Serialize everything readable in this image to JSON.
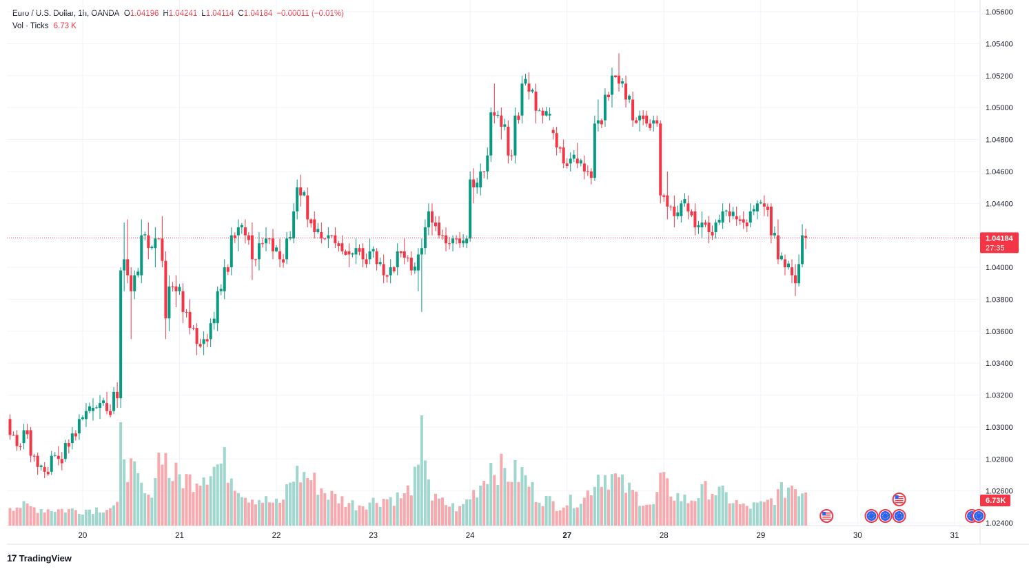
{
  "legend": {
    "symbol": "Euro / U.S. Dollar, 1h, OANDA",
    "o_label": "O",
    "o_value": "1.04196",
    "h_label": "H",
    "h_value": "1.04241",
    "l_label": "L",
    "l_value": "1.04114",
    "c_label": "C",
    "c_value": "1.04184",
    "change": "−0.00011 (−0.01%)",
    "vol_label": "Vol · Ticks",
    "vol_value": "6.73 K"
  },
  "price_tag": {
    "price": "1.04184",
    "countdown": "27:35"
  },
  "volume_tag": "6.73K",
  "branding": {
    "logo": "17",
    "name": "TradingView"
  },
  "colors": {
    "up": "#089981",
    "down": "#f23645",
    "vol_up": "#9fd6cd",
    "vol_down": "#f7a9ad",
    "grid": "#f0f3fa"
  },
  "chart_data": {
    "type": "candlestick",
    "y_ticks": [
      "1.05600",
      "1.05400",
      "1.05200",
      "1.05000",
      "1.04800",
      "1.04600",
      "1.04400",
      "1.04200",
      "1.04000",
      "1.03800",
      "1.03600",
      "1.03400",
      "1.03200",
      "1.03000",
      "1.02800",
      "1.02600",
      "1.02400"
    ],
    "ylim": [
      1.024,
      1.0562
    ],
    "x_ticks": [
      {
        "label": "20",
        "bar": 21,
        "bold": false
      },
      {
        "label": "21",
        "bar": 49,
        "bold": false
      },
      {
        "label": "22",
        "bar": 77,
        "bold": false
      },
      {
        "label": "23",
        "bar": 105,
        "bold": false
      },
      {
        "label": "24",
        "bar": 133,
        "bold": false
      },
      {
        "label": "27",
        "bar": 161,
        "bold": true
      },
      {
        "label": "28",
        "bar": 189,
        "bold": false
      },
      {
        "label": "29",
        "bar": 217,
        "bold": false
      },
      {
        "label": "30",
        "bar": 245,
        "bold": false
      },
      {
        "label": "31",
        "bar": 273,
        "bold": false
      }
    ],
    "last_price": 1.04184,
    "anchors": [
      [
        0,
        1.0305,
        1.0308,
        1.0292,
        1.0295
      ],
      [
        2,
        1.0295,
        1.0298,
        1.0285,
        1.0288
      ],
      [
        4,
        1.029,
        1.0302,
        1.0286,
        1.0298
      ],
      [
        6,
        1.0298,
        1.03,
        1.0278,
        1.0282
      ],
      [
        8,
        1.0282,
        1.0284,
        1.027,
        1.0275
      ],
      [
        10,
        1.0275,
        1.0278,
        1.0268,
        1.0272
      ],
      [
        12,
        1.0272,
        1.0285,
        1.027,
        1.0282
      ],
      [
        14,
        1.0282,
        1.0288,
        1.0276,
        1.028
      ],
      [
        16,
        1.028,
        1.0292,
        1.0278,
        1.029
      ],
      [
        18,
        1.029,
        1.03,
        1.0286,
        1.0296
      ],
      [
        20,
        1.0296,
        1.0308,
        1.0292,
        1.0305
      ],
      [
        22,
        1.0305,
        1.0315,
        1.03,
        1.031
      ],
      [
        24,
        1.031,
        1.0318,
        1.0304,
        1.0312
      ],
      [
        26,
        1.0312,
        1.032,
        1.0305,
        1.0315
      ],
      [
        28,
        1.0315,
        1.0322,
        1.0308,
        1.031
      ],
      [
        30,
        1.031,
        1.0325,
        1.0308,
        1.0322
      ],
      [
        31,
        1.0322,
        1.0328,
        1.0312,
        1.0318
      ],
      [
        32,
        1.0318,
        1.04,
        1.0312,
        1.0398
      ],
      [
        33,
        1.0398,
        1.0428,
        1.0385,
        1.0405
      ],
      [
        34,
        1.0405,
        1.043,
        1.039,
        1.0395
      ],
      [
        35,
        1.0395,
        1.04,
        1.0355,
        1.0385
      ],
      [
        36,
        1.0385,
        1.0398,
        1.038,
        1.0395
      ],
      [
        38,
        1.0395,
        1.043,
        1.039,
        1.042
      ],
      [
        40,
        1.042,
        1.0428,
        1.0405,
        1.0412
      ],
      [
        42,
        1.0412,
        1.0425,
        1.04,
        1.0418
      ],
      [
        44,
        1.0418,
        1.0432,
        1.04,
        1.0404
      ],
      [
        45,
        1.0404,
        1.041,
        1.0355,
        1.0368
      ],
      [
        46,
        1.0368,
        1.0395,
        1.036,
        1.0388
      ],
      [
        48,
        1.0388,
        1.0395,
        1.0375,
        1.0385
      ],
      [
        50,
        1.0385,
        1.039,
        1.0365,
        1.0372
      ],
      [
        52,
        1.0372,
        1.038,
        1.0358,
        1.0362
      ],
      [
        54,
        1.0362,
        1.0365,
        1.0345,
        1.0352
      ],
      [
        56,
        1.0352,
        1.036,
        1.0345,
        1.0355
      ],
      [
        58,
        1.0355,
        1.0368,
        1.035,
        1.0365
      ],
      [
        60,
        1.0365,
        1.0388,
        1.036,
        1.0385
      ],
      [
        62,
        1.0385,
        1.0405,
        1.038,
        1.04
      ],
      [
        64,
        1.04,
        1.0425,
        1.0395,
        1.042
      ],
      [
        66,
        1.042,
        1.043,
        1.041,
        1.0425
      ],
      [
        68,
        1.0425,
        1.043,
        1.0415,
        1.042
      ],
      [
        70,
        1.042,
        1.0428,
        1.0392,
        1.0405
      ],
      [
        72,
        1.0405,
        1.0422,
        1.0398,
        1.0415
      ],
      [
        74,
        1.0415,
        1.0425,
        1.041,
        1.0418
      ],
      [
        76,
        1.0418,
        1.0424,
        1.0405,
        1.041
      ],
      [
        78,
        1.041,
        1.0418,
        1.04,
        1.0405
      ],
      [
        80,
        1.0405,
        1.0422,
        1.0402,
        1.0418
      ],
      [
        82,
        1.0418,
        1.044,
        1.0415,
        1.0435
      ],
      [
        83,
        1.0435,
        1.0455,
        1.043,
        1.045
      ],
      [
        84,
        1.045,
        1.0458,
        1.0438,
        1.0445
      ],
      [
        86,
        1.0445,
        1.045,
        1.0425,
        1.043
      ],
      [
        88,
        1.043,
        1.0435,
        1.0418,
        1.0422
      ],
      [
        90,
        1.0422,
        1.0428,
        1.0415,
        1.0418
      ],
      [
        92,
        1.0418,
        1.0425,
        1.0412,
        1.042
      ],
      [
        94,
        1.042,
        1.0425,
        1.0412,
        1.0415
      ],
      [
        96,
        1.0415,
        1.042,
        1.0408,
        1.041
      ],
      [
        98,
        1.041,
        1.0415,
        1.04,
        1.0408
      ],
      [
        100,
        1.0408,
        1.0418,
        1.0402,
        1.0412
      ],
      [
        102,
        1.0412,
        1.0415,
        1.04,
        1.0405
      ],
      [
        104,
        1.0405,
        1.0418,
        1.0402,
        1.041
      ],
      [
        106,
        1.041,
        1.0412,
        1.0398,
        1.0402
      ],
      [
        108,
        1.0402,
        1.0408,
        1.039,
        1.0395
      ],
      [
        110,
        1.0395,
        1.0405,
        1.039,
        1.04
      ],
      [
        112,
        1.04,
        1.0415,
        1.0395,
        1.041
      ],
      [
        114,
        1.041,
        1.0418,
        1.0402,
        1.0406
      ],
      [
        116,
        1.0406,
        1.041,
        1.0395,
        1.0398
      ],
      [
        118,
        1.0398,
        1.0412,
        1.0385,
        1.0408
      ],
      [
        119,
        1.0408,
        1.0418,
        1.0372,
        1.0412
      ],
      [
        120,
        1.0412,
        1.043,
        1.0408,
        1.0425
      ],
      [
        121,
        1.0425,
        1.044,
        1.042,
        1.0435
      ],
      [
        122,
        1.0435,
        1.044,
        1.042,
        1.0428
      ],
      [
        124,
        1.0428,
        1.0432,
        1.0418,
        1.042
      ],
      [
        126,
        1.042,
        1.0425,
        1.041,
        1.0415
      ],
      [
        128,
        1.0415,
        1.042,
        1.041,
        1.0418
      ],
      [
        130,
        1.0418,
        1.0422,
        1.0412,
        1.0415
      ],
      [
        132,
        1.0415,
        1.042,
        1.0412,
        1.0418
      ],
      [
        133,
        1.0418,
        1.046,
        1.0416,
        1.0455
      ],
      [
        134,
        1.0455,
        1.0462,
        1.044,
        1.045
      ],
      [
        136,
        1.045,
        1.0465,
        1.0445,
        1.046
      ],
      [
        138,
        1.046,
        1.0475,
        1.0455,
        1.047
      ],
      [
        139,
        1.047,
        1.05,
        1.0466,
        1.0497
      ],
      [
        140,
        1.0497,
        1.0515,
        1.049,
        1.0495
      ],
      [
        142,
        1.0495,
        1.05,
        1.048,
        1.0488
      ],
      [
        144,
        1.0488,
        1.0492,
        1.0465,
        1.047
      ],
      [
        146,
        1.047,
        1.05,
        1.0465,
        1.0495
      ],
      [
        148,
        1.0495,
        1.052,
        1.049,
        1.0515
      ],
      [
        150,
        1.0515,
        1.0522,
        1.0505,
        1.051
      ],
      [
        152,
        1.051,
        1.0515,
        1.049,
        1.0498
      ],
      [
        154,
        1.0498,
        1.05,
        1.049,
        1.0495
      ],
      [
        156,
        1.0495,
        1.05,
        1.0492,
        1.0496
      ],
      [
        157,
        1.0486,
        1.0488,
        1.048,
        1.0484
      ],
      [
        158,
        1.0484,
        1.0488,
        1.047,
        1.0475
      ],
      [
        160,
        1.0475,
        1.048,
        1.0462,
        1.0465
      ],
      [
        162,
        1.0465,
        1.0472,
        1.046,
        1.0468
      ],
      [
        164,
        1.0468,
        1.0478,
        1.0462,
        1.0465
      ],
      [
        166,
        1.0465,
        1.047,
        1.0455,
        1.046
      ],
      [
        168,
        1.046,
        1.0462,
        1.0452,
        1.0456
      ],
      [
        169,
        1.0456,
        1.0495,
        1.0454,
        1.049
      ],
      [
        170,
        1.049,
        1.0505,
        1.0485,
        1.0492
      ],
      [
        172,
        1.0492,
        1.0512,
        1.0488,
        1.0508
      ],
      [
        174,
        1.0508,
        1.0525,
        1.05,
        1.052
      ],
      [
        176,
        1.052,
        1.0534,
        1.051,
        1.0515
      ],
      [
        178,
        1.0515,
        1.052,
        1.05,
        1.0505
      ],
      [
        180,
        1.0505,
        1.051,
        1.0488,
        1.0492
      ],
      [
        182,
        1.0492,
        1.0498,
        1.0485,
        1.0495
      ],
      [
        184,
        1.0495,
        1.0498,
        1.0488,
        1.049
      ],
      [
        186,
        1.049,
        1.0495,
        1.0485,
        1.0492
      ],
      [
        187,
        1.0492,
        1.0495,
        1.0488,
        1.049
      ],
      [
        188,
        1.049,
        1.0492,
        1.044,
        1.0445
      ],
      [
        190,
        1.0445,
        1.046,
        1.043,
        1.0438
      ],
      [
        192,
        1.0438,
        1.0445,
        1.0425,
        1.0432
      ],
      [
        194,
        1.0432,
        1.0442,
        1.0428,
        1.044
      ],
      [
        196,
        1.044,
        1.0445,
        1.043,
        1.0435
      ],
      [
        198,
        1.0435,
        1.044,
        1.042,
        1.0425
      ],
      [
        200,
        1.0425,
        1.0435,
        1.0418,
        1.0428
      ],
      [
        202,
        1.0428,
        1.0432,
        1.0415,
        1.0422
      ],
      [
        204,
        1.0422,
        1.043,
        1.0418,
        1.0428
      ],
      [
        206,
        1.0428,
        1.044,
        1.0424,
        1.0435
      ],
      [
        208,
        1.0435,
        1.044,
        1.0428,
        1.0432
      ],
      [
        210,
        1.0432,
        1.0438,
        1.0426,
        1.043
      ],
      [
        212,
        1.043,
        1.0435,
        1.0424,
        1.0428
      ],
      [
        214,
        1.0428,
        1.044,
        1.0425,
        1.0435
      ],
      [
        216,
        1.0435,
        1.0442,
        1.043,
        1.044
      ],
      [
        218,
        1.044,
        1.0445,
        1.0432,
        1.0438
      ],
      [
        220,
        1.0438,
        1.044,
        1.0415,
        1.042
      ],
      [
        222,
        1.042,
        1.043,
        1.0402,
        1.0405
      ],
      [
        224,
        1.0405,
        1.0408,
        1.0395,
        1.04
      ],
      [
        226,
        1.04,
        1.0405,
        1.039,
        1.0395
      ],
      [
        227,
        1.0395,
        1.0402,
        1.0382,
        1.039
      ],
      [
        228,
        1.039,
        1.0408,
        1.0388,
        1.0402
      ],
      [
        229,
        1.0402,
        1.0427,
        1.04,
        1.042
      ],
      [
        230,
        1.04196,
        1.04241,
        1.04114,
        1.04184
      ]
    ],
    "volume_anchors": [
      [
        0,
        1.0
      ],
      [
        5,
        0.9
      ],
      [
        10,
        0.8
      ],
      [
        20,
        0.75
      ],
      [
        31,
        0.9
      ],
      [
        32,
        5.0
      ],
      [
        34,
        3.0
      ],
      [
        40,
        1.2
      ],
      [
        44,
        4.0
      ],
      [
        46,
        2.5
      ],
      [
        52,
        2.2
      ],
      [
        58,
        2.8
      ],
      [
        62,
        3.0
      ],
      [
        68,
        1.5
      ],
      [
        78,
        1.0
      ],
      [
        82,
        2.5
      ],
      [
        86,
        2.4
      ],
      [
        92,
        1.5
      ],
      [
        100,
        1.0
      ],
      [
        108,
        1.3
      ],
      [
        114,
        1.4
      ],
      [
        118,
        2.5
      ],
      [
        119,
        5.0
      ],
      [
        122,
        1.3
      ],
      [
        130,
        0.8
      ],
      [
        136,
        2.0
      ],
      [
        139,
        3.0
      ],
      [
        144,
        2.5
      ],
      [
        148,
        2.5
      ],
      [
        152,
        1.5
      ],
      [
        158,
        1.0
      ],
      [
        166,
        1.3
      ],
      [
        170,
        2.5
      ],
      [
        174,
        2.4
      ],
      [
        178,
        1.8
      ],
      [
        186,
        0.9
      ],
      [
        188,
        2.2
      ],
      [
        192,
        1.5
      ],
      [
        196,
        1.2
      ],
      [
        202,
        1.8
      ],
      [
        206,
        1.5
      ],
      [
        212,
        0.9
      ],
      [
        218,
        1.0
      ],
      [
        222,
        1.5
      ],
      [
        226,
        2.0
      ],
      [
        230,
        1.6
      ]
    ]
  },
  "events": [
    {
      "bar": 236,
      "kind": "us",
      "name": "us-flag-event-icon"
    },
    {
      "bar": 249,
      "kind": "eu",
      "name": "eu-flag-event-icon"
    },
    {
      "bar": 253,
      "kind": "eu",
      "name": "eu-flag-event-icon"
    },
    {
      "bar": 257,
      "kind": "us",
      "name": "us-flag-event-icon",
      "row": 2
    },
    {
      "bar": 257,
      "kind": "eu",
      "name": "eu-flag-event-icon"
    },
    {
      "bar": 278,
      "kind": "eu",
      "name": "eu-flag-event-icon"
    },
    {
      "bar": 280,
      "kind": "eu",
      "name": "eu-flag-event-icon"
    }
  ]
}
